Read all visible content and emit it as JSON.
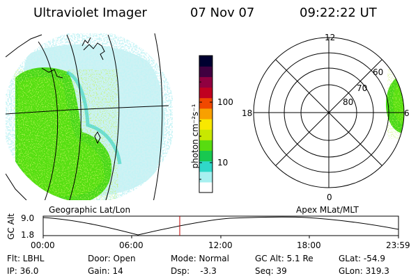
{
  "header": {
    "instrument": "Ultraviolet Imager",
    "date": "07 Nov 07",
    "time": "09:22:22 UT"
  },
  "colorbar": {
    "unit_label": "photon cm⁻²s⁻¹",
    "ticks": [
      "100",
      "10"
    ],
    "scale": "log",
    "colors": [
      "#ffffff",
      "#a8f0f0",
      "#30d8c8",
      "#18c850",
      "#58dc10",
      "#c8e800",
      "#f8e800",
      "#f8a000",
      "#f04800",
      "#c00020",
      "#900040",
      "#400040",
      "#000030"
    ]
  },
  "left_panel": {
    "label": "Geographic Lat/Lon",
    "colors": {
      "aurora_green": "#40d810",
      "scatter_cyan": "#a0e8ec"
    }
  },
  "right_panel": {
    "label": "Apex MLat/MLT",
    "mlt_labels": {
      "top": "12",
      "left": "18",
      "right": "6",
      "bottom": "0"
    },
    "lat_labels": [
      "60",
      "70",
      "80"
    ]
  },
  "altitude_plot": {
    "ylabel": "GC Alt",
    "yticks": [
      "9.0",
      "1.8"
    ],
    "xticks": [
      "00:00",
      "06:00",
      "12:00",
      "18:00",
      "23:59"
    ],
    "cursor_time": "09:22",
    "cursor_color": "#c00000"
  },
  "footer": {
    "flt": "Flt: LBHL",
    "ip": "IP: 36.0",
    "door": "Door: Open",
    "gain": "Gain: 14",
    "mode": "Mode: Normal",
    "dsp": "Dsp:    -3.3",
    "gcalt": "GC Alt: 5.1 Re",
    "seq": "Seq: 39",
    "glat": "GLat: -54.9",
    "glon": "GLon: 319.3"
  }
}
